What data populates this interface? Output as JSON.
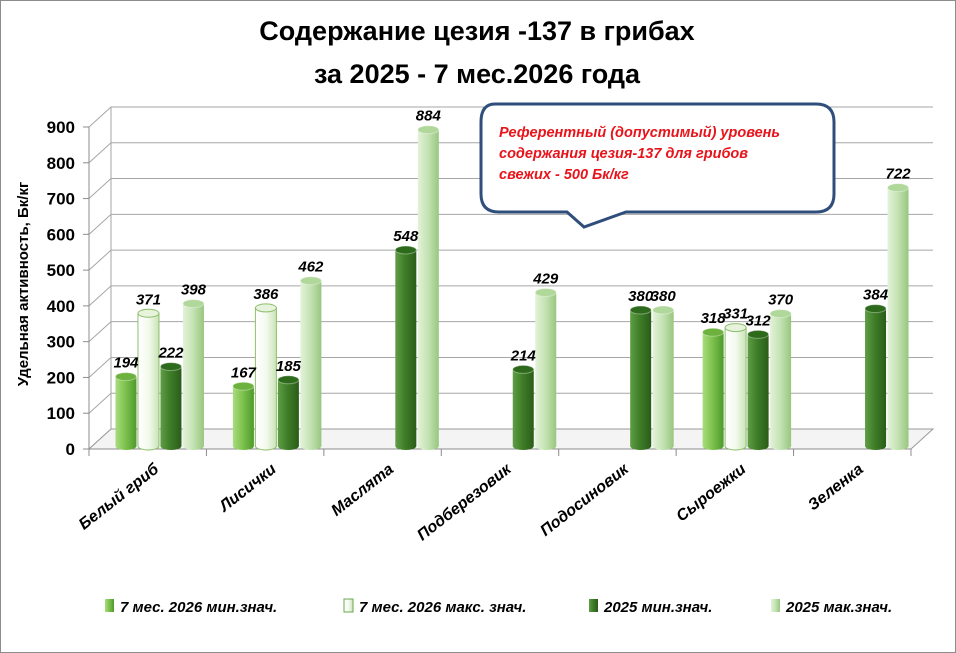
{
  "chart_data": {
    "type": "bar",
    "title": [
      "Содержание цезия -137 в грибах",
      "за  2025 - 7 мес.2026 года"
    ],
    "ylabel": "Удельная активность, Бк/кг",
    "xlabel": "",
    "ylim": [
      0,
      900
    ],
    "yticks": [
      0,
      100,
      200,
      300,
      400,
      500,
      600,
      700,
      800,
      900
    ],
    "grid": true,
    "legend_position": "bottom",
    "categories": [
      "Белый гриб",
      "Лисички",
      "Маслята",
      "Подберезовик",
      "Подосиновик",
      "Сыроежки",
      "Зеленка"
    ],
    "series": [
      {
        "name": "7 мес. 2026 мин.знач.",
        "color": "#7fc34f",
        "values": [
          194,
          167,
          null,
          null,
          null,
          318,
          null
        ]
      },
      {
        "name": "7 мес. 2026 макс. знач.",
        "color": "#f4faef",
        "values": [
          371,
          386,
          null,
          null,
          null,
          331,
          null
        ]
      },
      {
        "name": "2025 мин.знач.",
        "color": "#3f7e28",
        "values": [
          222,
          185,
          548,
          214,
          380,
          312,
          384
        ]
      },
      {
        "name": "2025 мак.знач.",
        "color": "#c3e2b2",
        "values": [
          398,
          462,
          884,
          429,
          380,
          370,
          722
        ]
      }
    ],
    "annotations": [
      {
        "text": [
          "Референтный (допустимый) уровень",
          "содержания цезия-137 для грибов",
          "свежих - 500 Бк/кг"
        ],
        "color": "#e8141b"
      }
    ]
  }
}
